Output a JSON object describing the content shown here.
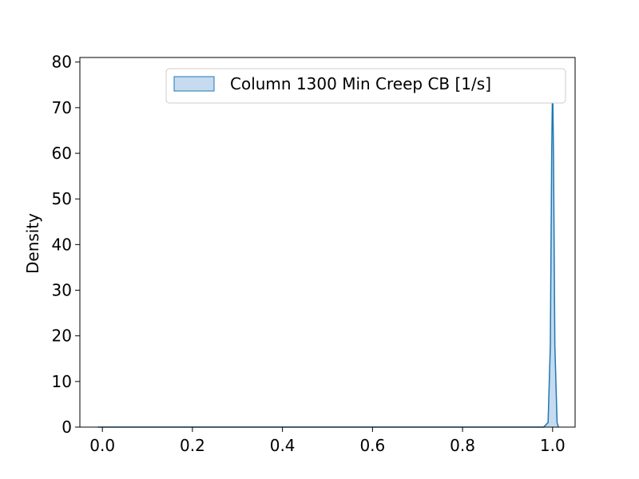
{
  "chart_data": {
    "type": "area",
    "title": "",
    "xlabel": "",
    "ylabel": "Density",
    "xlim": [
      -0.05,
      1.05
    ],
    "ylim": [
      0,
      81
    ],
    "x_ticks": [
      0.0,
      0.2,
      0.4,
      0.6,
      0.8,
      1.0
    ],
    "x_tick_labels": [
      "0.0",
      "0.2",
      "0.4",
      "0.6",
      "0.8",
      "1.0"
    ],
    "y_ticks": [
      0,
      10,
      20,
      30,
      40,
      50,
      60,
      70,
      80
    ],
    "y_tick_labels": [
      "0",
      "10",
      "20",
      "30",
      "40",
      "50",
      "60",
      "70",
      "80"
    ],
    "grid": false,
    "legend_position": "top-right",
    "series": [
      {
        "name": "Column 1300 Min Creep CB [1/s]",
        "color": "#1f77b4",
        "fill_color": "#c6dbef",
        "x": [
          -0.01,
          0.0,
          0.98,
          0.99,
          0.995,
          0.998,
          1.0,
          1.002,
          1.005,
          1.01,
          1.013
        ],
        "y": [
          0.0,
          0.0,
          0.0,
          1.0,
          18.0,
          60.0,
          76.0,
          60.0,
          18.0,
          1.0,
          0.0
        ]
      }
    ]
  }
}
